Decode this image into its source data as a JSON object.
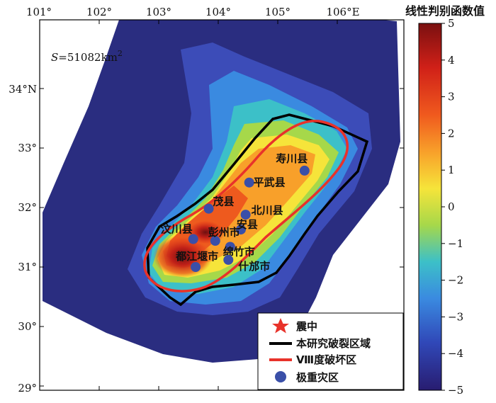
{
  "colorbar": {
    "title": "线性判别函数值",
    "ticks": [
      "5",
      "4",
      "3",
      "2",
      "1",
      "0",
      "−1",
      "−2",
      "−3",
      "−4",
      "−5"
    ]
  },
  "axes": {
    "x_ticks": [
      "101°",
      "102°",
      "103°",
      "104°",
      "105°",
      "106°E"
    ],
    "y_ticks": [
      "34°N",
      "33°",
      "32°",
      "31°",
      "30°",
      "29°"
    ]
  },
  "area_label": {
    "var": "S",
    "value": "=51082km",
    "sup": "2"
  },
  "cities": [
    {
      "name": "寿川县",
      "lon": 105.45,
      "lat": 32.62
    },
    {
      "name": "平武县",
      "lon": 104.52,
      "lat": 32.42
    },
    {
      "name": "茂县",
      "lon": 103.84,
      "lat": 31.98
    },
    {
      "name": "北川县",
      "lon": 104.46,
      "lat": 31.88
    },
    {
      "name": "安县",
      "lon": 104.38,
      "lat": 31.63
    },
    {
      "name": "汶川县",
      "lon": 103.58,
      "lat": 31.47
    },
    {
      "name": "彭州市",
      "lon": 103.95,
      "lat": 31.44
    },
    {
      "name": "绵竹市",
      "lon": 104.2,
      "lat": 31.34
    },
    {
      "name": "都江堰市",
      "lon": 103.62,
      "lat": 31.0
    },
    {
      "name": "什邡市",
      "lon": 104.17,
      "lat": 31.12
    }
  ],
  "legend": [
    {
      "label": "震中",
      "icon": "star-icon",
      "color": "#e8322a"
    },
    {
      "label": "本研究破裂区域",
      "icon": "black-line-icon",
      "color": "#000000"
    },
    {
      "label": "Ⅷ度破坏区",
      "icon": "red-line-icon",
      "color": "#e8322a"
    },
    {
      "label": "极重灾区",
      "icon": "blue-dot-icon",
      "color": "#3a4fa8"
    }
  ],
  "colors": {
    "dark_blue": "#2a2d80",
    "mid_blue": "#5060c8",
    "cyan": "#3cb0e0",
    "red_line": "#e8322a",
    "marker": "#3a4fa8"
  }
}
